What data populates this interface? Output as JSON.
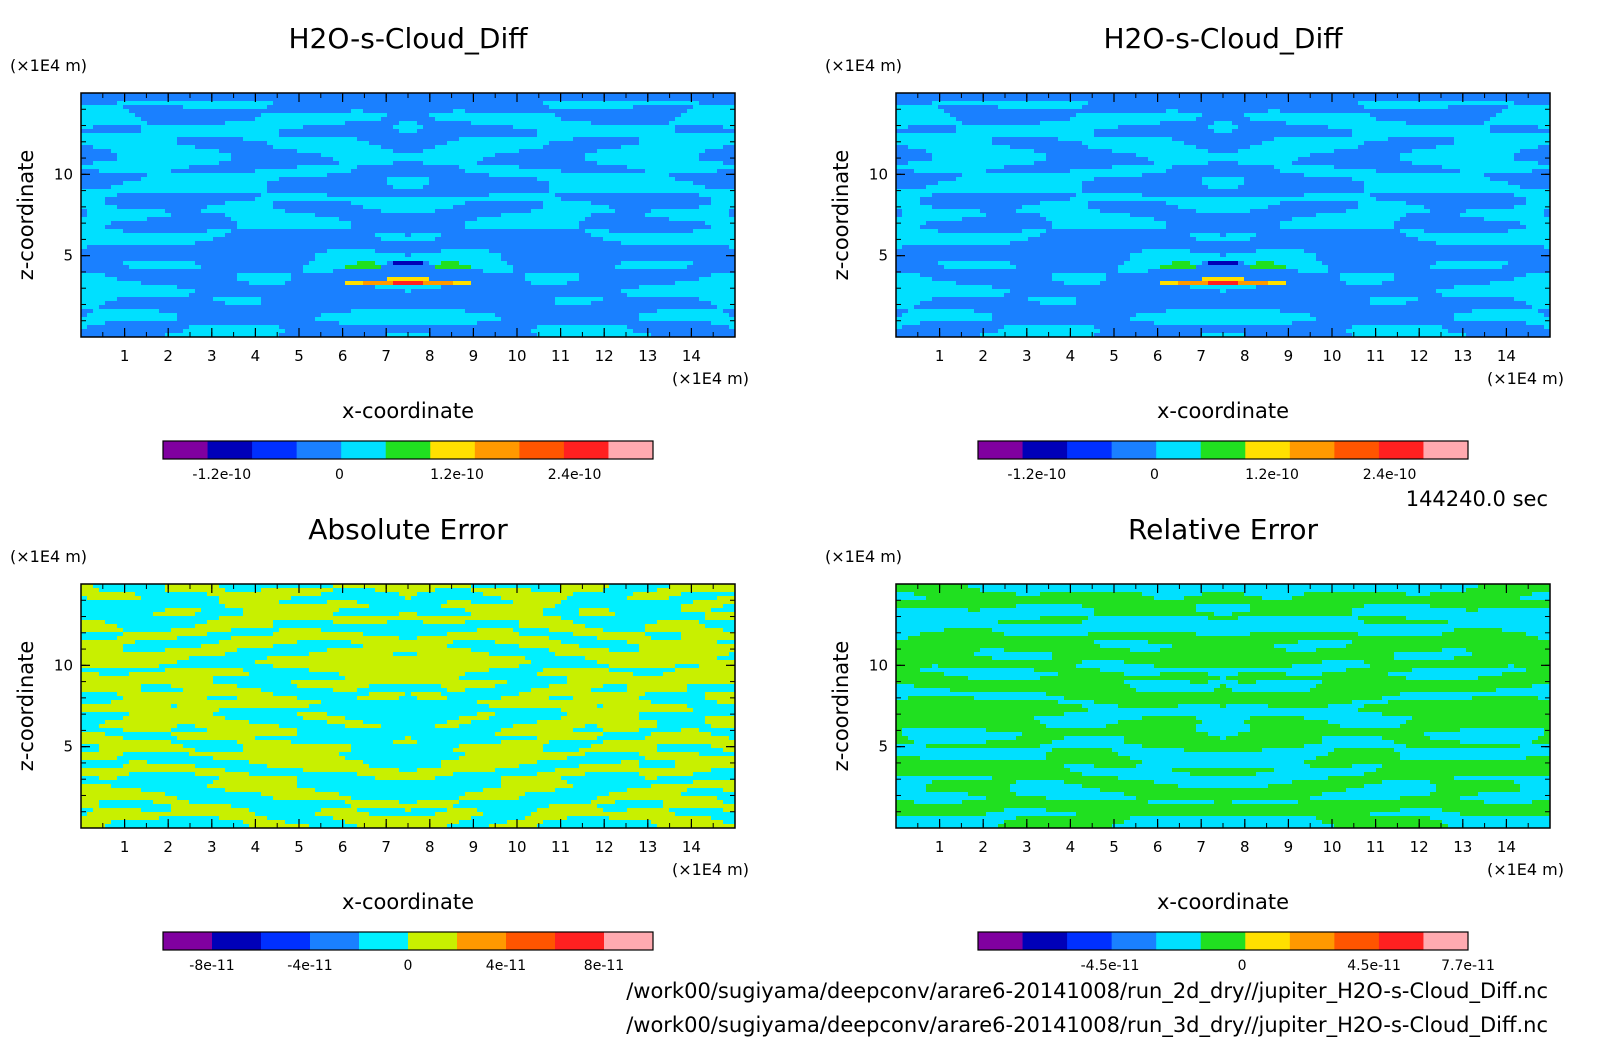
{
  "chart_data": [
    {
      "type": "heatmap",
      "title": "H2O-s-Cloud_Diff",
      "xlabel": "x-coordinate",
      "ylabel": "z-coordinate",
      "x_unit": "(×1E4 m)",
      "y_unit": "(×1E4 m)",
      "xlim": [
        0,
        15
      ],
      "ylim": [
        0,
        15
      ],
      "xticks": [
        "1",
        "2",
        "3",
        "4",
        "5",
        "6",
        "7",
        "8",
        "9",
        "10",
        "11",
        "12",
        "13",
        "14"
      ],
      "yticks": [
        "5",
        "10"
      ],
      "colorbar": {
        "colors": [
          "#8000a0",
          "#0000b8",
          "#0030ff",
          "#1a80ff",
          "#00e0ff",
          "#20e020",
          "#ffe000",
          "#ff9900",
          "#ff5500",
          "#ff2020",
          "#ffaab0"
        ],
        "ticks": [
          "-1.2e-10",
          "0",
          "1.2e-10",
          "2.4e-10"
        ],
        "range": [
          -1.8e-10,
          3.2e-10
        ]
      }
    },
    {
      "type": "heatmap",
      "title": "H2O-s-Cloud_Diff",
      "xlabel": "x-coordinate",
      "ylabel": "z-coordinate",
      "x_unit": "(×1E4 m)",
      "y_unit": "(×1E4 m)",
      "xlim": [
        0,
        15
      ],
      "ylim": [
        0,
        15
      ],
      "xticks": [
        "1",
        "2",
        "3",
        "4",
        "5",
        "6",
        "7",
        "8",
        "9",
        "10",
        "11",
        "12",
        "13",
        "14"
      ],
      "yticks": [
        "5",
        "10"
      ],
      "colorbar": {
        "colors": [
          "#8000a0",
          "#0000b8",
          "#0030ff",
          "#1a80ff",
          "#00e0ff",
          "#20e020",
          "#ffe000",
          "#ff9900",
          "#ff5500",
          "#ff2020",
          "#ffaab0"
        ],
        "ticks": [
          "-1.2e-10",
          "0",
          "1.2e-10",
          "2.4e-10"
        ],
        "range": [
          -1.8e-10,
          3.2e-10
        ]
      }
    },
    {
      "type": "heatmap",
      "title": "Absolute Error",
      "xlabel": "x-coordinate",
      "ylabel": "z-coordinate",
      "x_unit": "(×1E4 m)",
      "y_unit": "(×1E4 m)",
      "xlim": [
        0,
        15
      ],
      "ylim": [
        0,
        15
      ],
      "xticks": [
        "1",
        "2",
        "3",
        "4",
        "5",
        "6",
        "7",
        "8",
        "9",
        "10",
        "11",
        "12",
        "13",
        "14"
      ],
      "yticks": [
        "5",
        "10"
      ],
      "colorbar": {
        "colors": [
          "#8000a0",
          "#0000b8",
          "#0030ff",
          "#1a80ff",
          "#00f0ff",
          "#c8f000",
          "#ff9900",
          "#ff5500",
          "#ff2020",
          "#ffaab0"
        ],
        "ticks": [
          "-8e-11",
          "-4e-11",
          "0",
          "4e-11",
          "8e-11"
        ],
        "range": [
          -1e-10,
          1e-10
        ]
      }
    },
    {
      "type": "heatmap",
      "title": "Relative Error",
      "xlabel": "x-coordinate",
      "ylabel": "z-coordinate",
      "x_unit": "(×1E4 m)",
      "y_unit": "(×1E4 m)",
      "xlim": [
        0,
        15
      ],
      "ylim": [
        0,
        15
      ],
      "xticks": [
        "1",
        "2",
        "3",
        "4",
        "5",
        "6",
        "7",
        "8",
        "9",
        "10",
        "11",
        "12",
        "13",
        "14"
      ],
      "yticks": [
        "5",
        "10"
      ],
      "colorbar": {
        "colors": [
          "#8000a0",
          "#0000b8",
          "#0030ff",
          "#1a80ff",
          "#00e0ff",
          "#20e020",
          "#ffe000",
          "#ff9900",
          "#ff5500",
          "#ff2020",
          "#ffaab0"
        ],
        "ticks": [
          "-4.5e-11",
          "0",
          "4.5e-11",
          "7.7e-11"
        ],
        "range": [
          -9e-11,
          7.7e-11
        ]
      }
    }
  ],
  "time_label": "144240.0 sec",
  "file_paths": [
    "/work00/sugiyama/deepconv/arare6-20141008/run_2d_dry//jupiter_H2O-s-Cloud_Diff.nc",
    "/work00/sugiyama/deepconv/arare6-20141008/run_3d_dry//jupiter_H2O-s-Cloud_Diff.nc"
  ]
}
